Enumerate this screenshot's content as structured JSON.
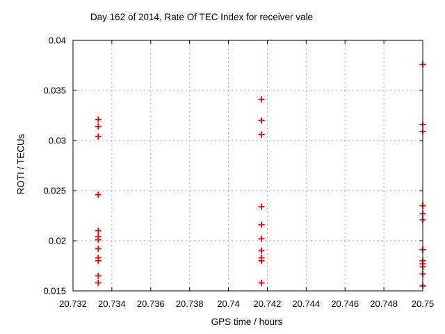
{
  "page": {
    "background": "#ffffff",
    "text_color": "#000000"
  },
  "chart_data": {
    "type": "scatter",
    "title": "Day 162 of 2014, Rate Of TEC Index for receiver vale",
    "xlabel": "GPS time / hours",
    "ylabel": "ROTI / TECUs",
    "xlim": [
      20.732,
      20.75
    ],
    "ylim": [
      0.015,
      0.04
    ],
    "grid": true,
    "legend": "none",
    "grid_color": "#a0a0a0",
    "axis_color": "#000000",
    "marker": {
      "shape": "plus",
      "color": "#ff0000",
      "size": 9
    },
    "x_ticks": {
      "values": [
        20.732,
        20.734,
        20.736,
        20.738,
        20.74,
        20.742,
        20.744,
        20.746,
        20.748,
        20.75
      ],
      "labels": [
        "20.732",
        "20.734",
        "20.736",
        "20.738",
        "20.74",
        "20.742",
        "20.744",
        "20.746",
        "20.748",
        "20.75"
      ]
    },
    "y_ticks": {
      "values": [
        0.015,
        0.02,
        0.025,
        0.03,
        0.035,
        0.04
      ],
      "labels": [
        "0.015",
        "0.02",
        "0.025",
        "0.03",
        "0.035",
        "0.04"
      ]
    },
    "series": [
      {
        "name": "ROTI",
        "points": [
          [
            20.7333,
            0.0321
          ],
          [
            20.7333,
            0.0314
          ],
          [
            20.7333,
            0.0304
          ],
          [
            20.7333,
            0.0246
          ],
          [
            20.7333,
            0.021
          ],
          [
            20.7333,
            0.0204
          ],
          [
            20.7333,
            0.0201
          ],
          [
            20.7333,
            0.0192
          ],
          [
            20.7333,
            0.0183
          ],
          [
            20.7333,
            0.018
          ],
          [
            20.7333,
            0.0165
          ],
          [
            20.7333,
            0.0158
          ],
          [
            20.7417,
            0.0341
          ],
          [
            20.7417,
            0.032
          ],
          [
            20.7417,
            0.0306
          ],
          [
            20.7417,
            0.0234
          ],
          [
            20.7417,
            0.0216
          ],
          [
            20.7417,
            0.0202
          ],
          [
            20.7417,
            0.019
          ],
          [
            20.7417,
            0.0183
          ],
          [
            20.7417,
            0.018
          ],
          [
            20.7417,
            0.0158
          ],
          [
            20.75,
            0.0376
          ],
          [
            20.75,
            0.0316
          ],
          [
            20.75,
            0.0309
          ],
          [
            20.75,
            0.0235
          ],
          [
            20.75,
            0.0227
          ],
          [
            20.75,
            0.0221
          ],
          [
            20.75,
            0.0191
          ],
          [
            20.75,
            0.018
          ],
          [
            20.75,
            0.0177
          ],
          [
            20.75,
            0.0174
          ],
          [
            20.75,
            0.0167
          ],
          [
            20.75,
            0.0155
          ]
        ]
      }
    ]
  }
}
